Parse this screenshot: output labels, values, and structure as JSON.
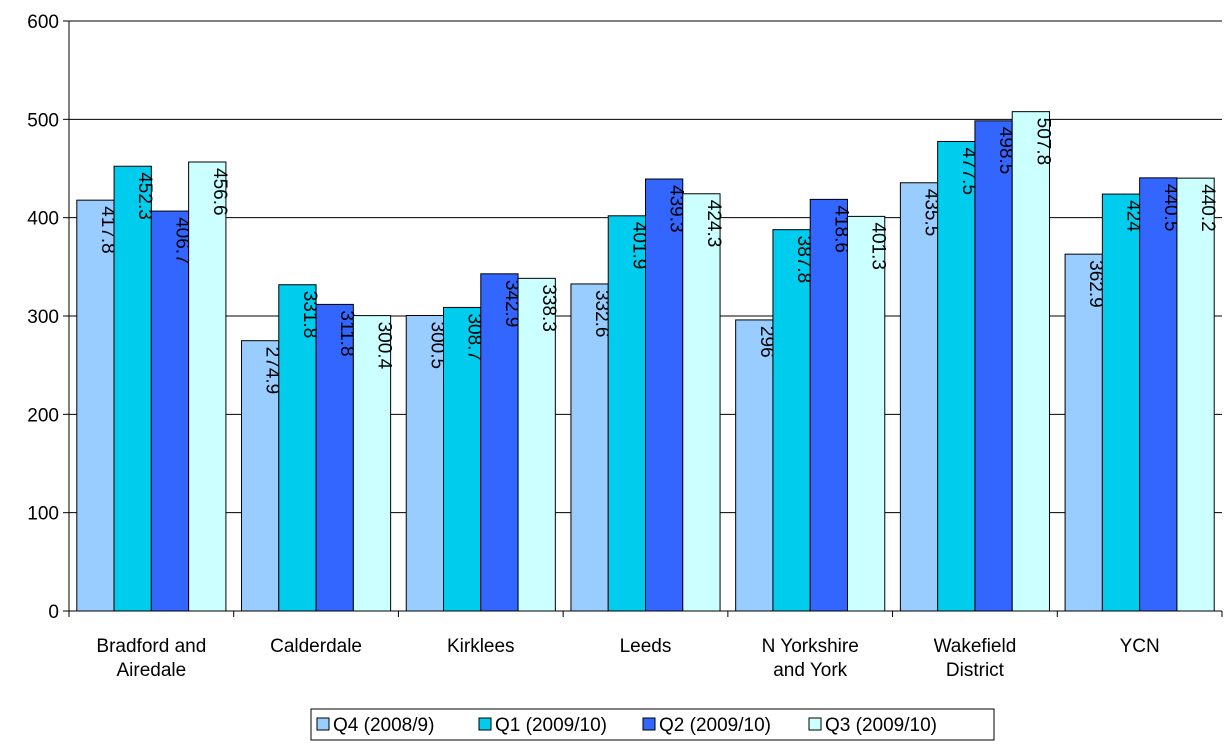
{
  "chart_data": {
    "type": "bar",
    "title": "",
    "xlabel": "",
    "ylabel": "",
    "ylim": [
      0,
      600
    ],
    "yticks": [
      0,
      100,
      200,
      300,
      400,
      500,
      600
    ],
    "grid": true,
    "legend_position": "bottom",
    "categories": [
      [
        "Bradford and",
        "Airedale"
      ],
      [
        "Calderdale"
      ],
      [
        "Kirklees"
      ],
      [
        "Leeds"
      ],
      [
        "N Yorkshire",
        "and York"
      ],
      [
        "Wakefield",
        "District"
      ],
      [
        "YCN"
      ]
    ],
    "series": [
      {
        "name": "Q4 (2008/9)",
        "color": "#99ccff",
        "values": [
          417.8,
          274.9,
          300.5,
          332.6,
          296,
          435.5,
          362.9
        ]
      },
      {
        "name": "Q1 (2009/10)",
        "color": "#00ccee",
        "values": [
          452.3,
          331.8,
          308.7,
          401.9,
          387.8,
          477.5,
          424
        ]
      },
      {
        "name": "Q2 (2009/10)",
        "color": "#3366ff",
        "values": [
          406.7,
          311.8,
          342.9,
          439.3,
          418.6,
          498.5,
          440.5
        ]
      },
      {
        "name": "Q3 (2009/10)",
        "color": "#ccffff",
        "values": [
          456.6,
          300.4,
          338.3,
          424.3,
          401.3,
          507.8,
          440.2
        ]
      }
    ]
  }
}
